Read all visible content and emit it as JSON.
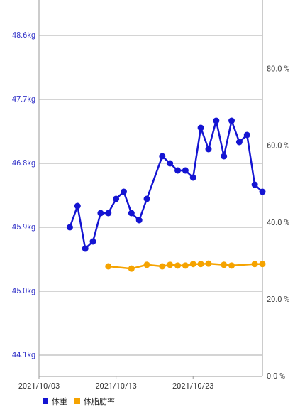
{
  "chart_data": {
    "type": "line",
    "xlim": [
      "2021/10/03",
      "2021/11/01"
    ],
    "xticks": [
      "2021/10/03",
      "2021/10/13",
      "2021/10/23"
    ],
    "ylim": [
      43.8,
      49.1
    ],
    "yticks": [
      {
        "value": 44.1,
        "label": "44.1kg"
      },
      {
        "value": 45.0,
        "label": "45.0kg"
      },
      {
        "value": 45.9,
        "label": "45.9kg"
      },
      {
        "value": 46.8,
        "label": "46.8kg"
      },
      {
        "value": 47.7,
        "label": "47.7kg"
      },
      {
        "value": 48.6,
        "label": "48.6kg"
      }
    ],
    "y2lim": [
      0,
      98.1
    ],
    "y2ticks": [
      {
        "value": 0,
        "label": "0.0 %"
      },
      {
        "value": 20,
        "label": "20.0 %"
      },
      {
        "value": 40,
        "label": "40.0 %"
      },
      {
        "value": 60,
        "label": "60.0 %"
      },
      {
        "value": 80,
        "label": "80.0 %"
      }
    ],
    "grid": true,
    "legend": "bottom",
    "series": [
      {
        "name": "体重",
        "color": "#1414d2",
        "x": [
          "2021/10/07",
          "2021/10/08",
          "2021/10/09",
          "2021/10/10",
          "2021/10/11",
          "2021/10/12",
          "2021/10/13",
          "2021/10/14",
          "2021/10/15",
          "2021/10/16",
          "2021/10/17",
          "2021/10/19",
          "2021/10/20",
          "2021/10/21",
          "2021/10/22",
          "2021/10/23",
          "2021/10/24",
          "2021/10/25",
          "2021/10/26",
          "2021/10/27",
          "2021/10/28",
          "2021/10/29",
          "2021/10/30",
          "2021/10/31",
          "2021/11/01"
        ],
        "values": [
          45.9,
          46.2,
          45.6,
          45.7,
          46.1,
          46.1,
          46.3,
          46.4,
          46.1,
          46.0,
          46.3,
          46.9,
          46.8,
          46.7,
          46.7,
          46.6,
          47.3,
          47.0,
          47.4,
          46.9,
          47.4,
          47.1,
          47.2,
          46.5,
          46.4
        ]
      },
      {
        "name": "体脂肪率",
        "color": "#f5a300",
        "axis": "y2",
        "x": [
          "2021/10/12",
          "2021/10/15",
          "2021/10/17",
          "2021/10/19",
          "2021/10/20",
          "2021/10/21",
          "2021/10/22",
          "2021/10/23",
          "2021/10/24",
          "2021/10/25",
          "2021/10/27",
          "2021/10/28",
          "2021/10/31",
          "2021/11/01"
        ],
        "values": [
          28.7,
          28.1,
          29.1,
          28.7,
          29.1,
          28.9,
          28.9,
          29.3,
          29.3,
          29.4,
          29.1,
          28.9,
          29.3,
          29.3
        ]
      }
    ]
  }
}
